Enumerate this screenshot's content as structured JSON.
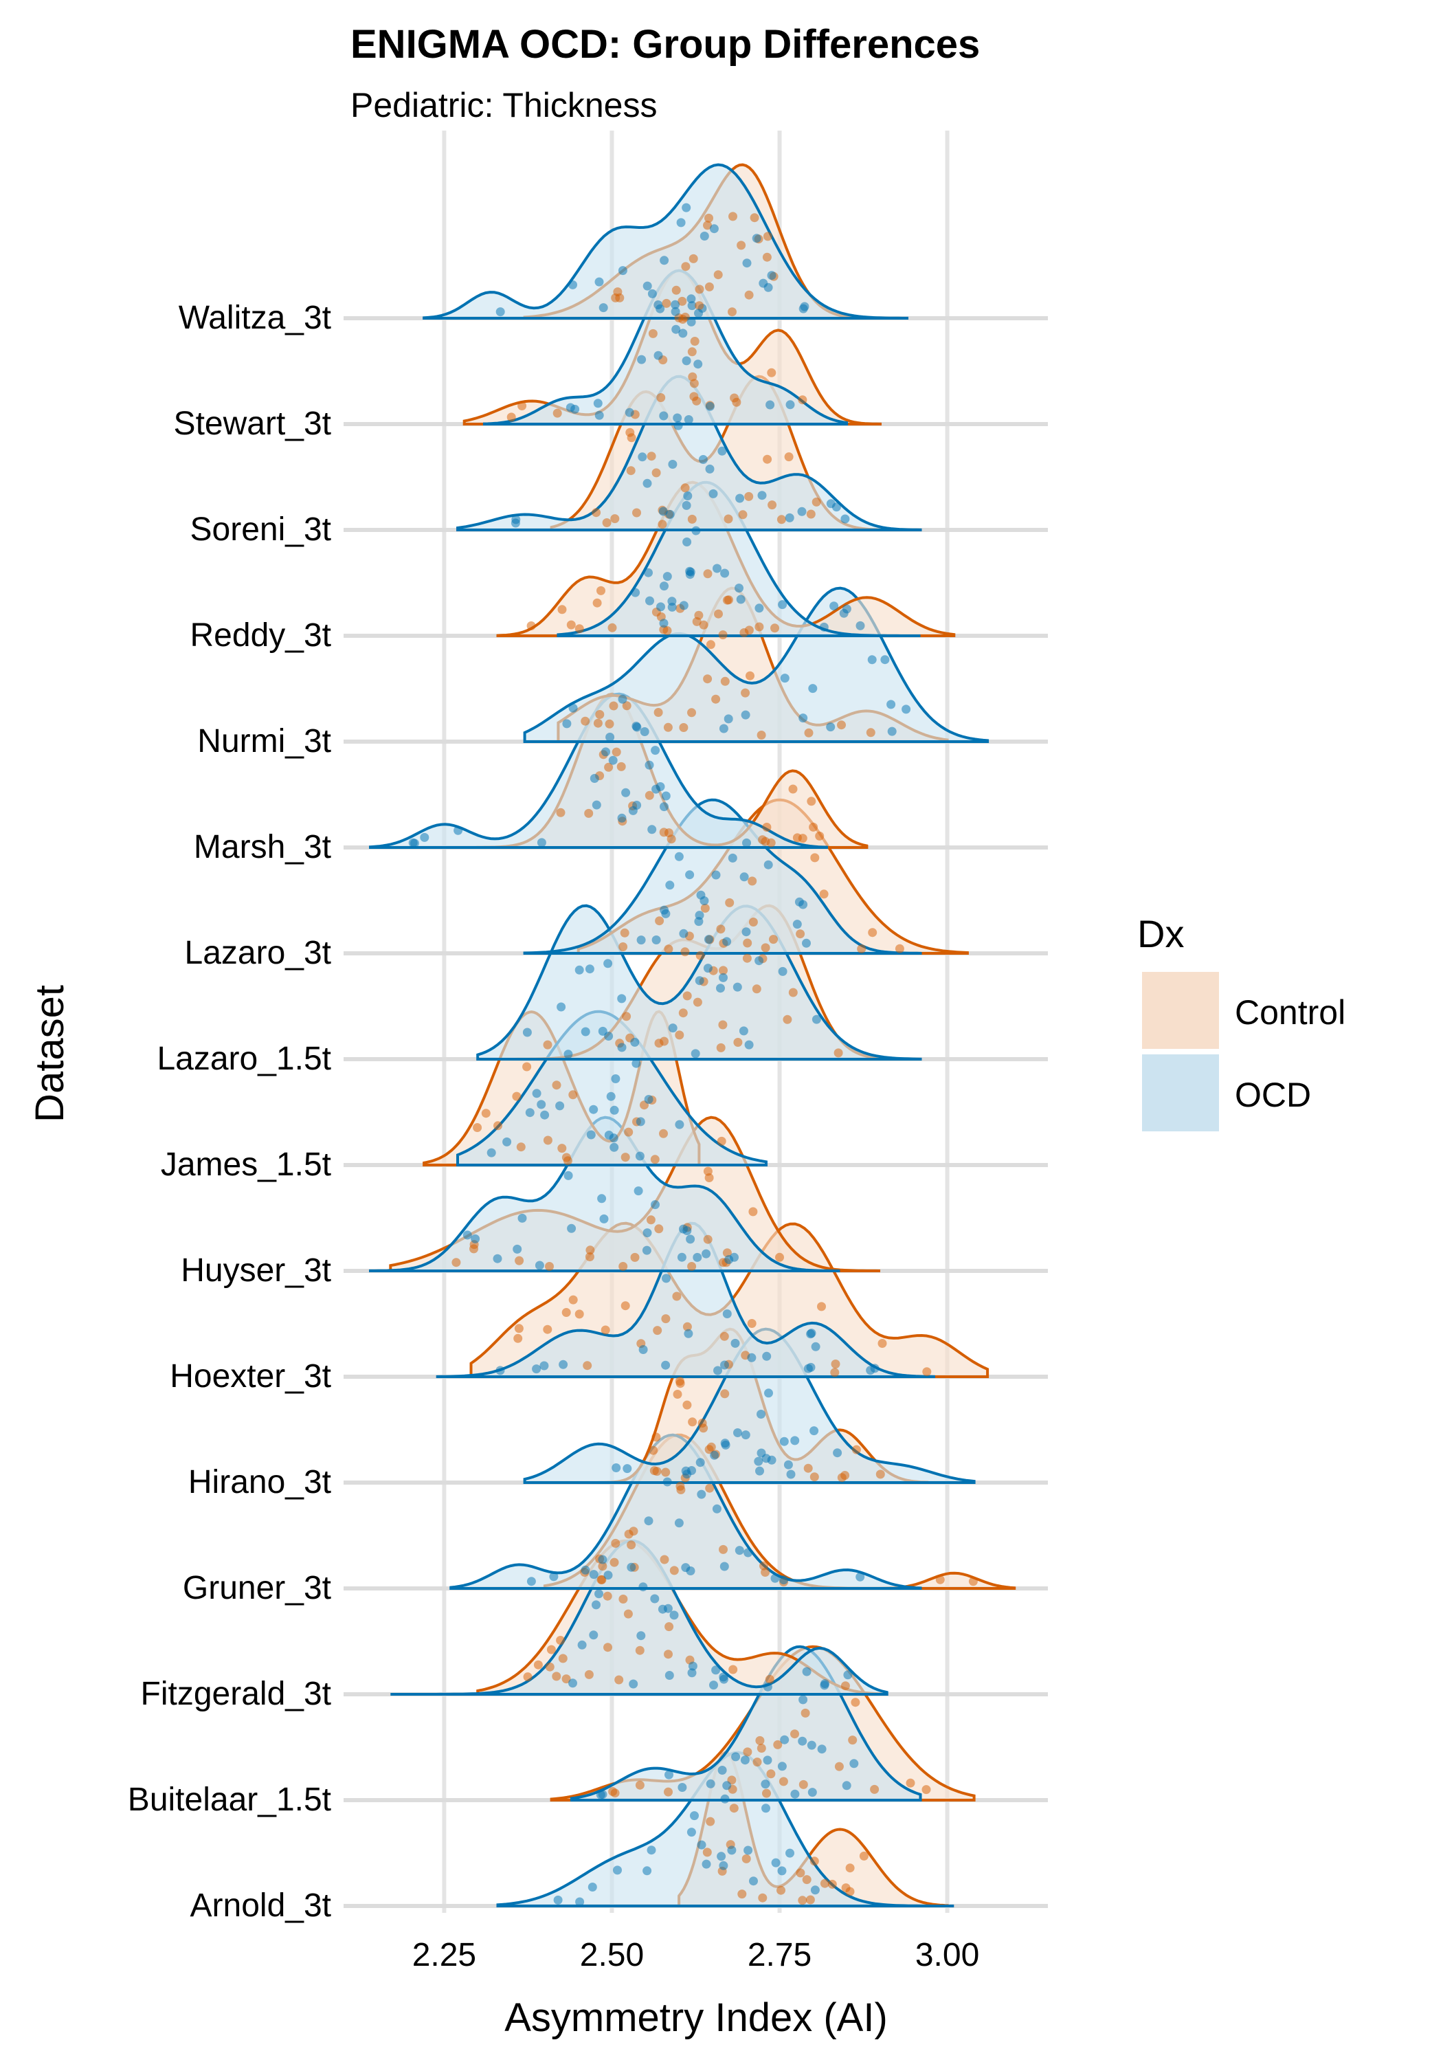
{
  "chart_data": {
    "type": "ridgeline",
    "title": "ENIGMA OCD: Group Differences",
    "subtitle": "Pediatric: Thickness",
    "xlabel": "Asymmetry Index (AI)",
    "ylabel": "Dataset",
    "xlim": [
      2.1,
      3.15
    ],
    "x_ticks": [
      {
        "value": 2.25,
        "label": "2.25"
      },
      {
        "value": 2.5,
        "label": "2.50"
      },
      {
        "value": 2.75,
        "label": "2.75"
      },
      {
        "value": 3.0,
        "label": "3.00"
      }
    ],
    "grid": true,
    "legend_position": "right",
    "legend": {
      "title": "Dx",
      "items": [
        {
          "label": "Control",
          "fill": "#f7dfcc",
          "line": "#d55e00"
        },
        {
          "label": "OCD",
          "fill": "#cce3f0",
          "line": "#0072b2"
        }
      ]
    },
    "categories": [
      "Arnold_3t",
      "Buitelaar_1.5t",
      "Fitzgerald_3t",
      "Gruner_3t",
      "Hirano_3t",
      "Hoexter_3t",
      "Huyser_3t",
      "James_1.5t",
      "Lazaro_1.5t",
      "Lazaro_3t",
      "Marsh_3t",
      "Nurmi_3t",
      "Reddy_3t",
      "Soreni_3t",
      "Stewart_3t",
      "Walitza_3t"
    ],
    "series": [
      {
        "name": "Control",
        "color": "#d55e00",
        "densities": [
          {
            "dataset": "Arnold_3t",
            "range": [
              2.6,
              3.0
            ],
            "components": [
              [
                2.67,
                0.03,
                1.0
              ],
              [
                2.84,
                0.05,
                0.5
              ]
            ]
          },
          {
            "dataset": "Buitelaar_1.5t",
            "range": [
              2.41,
              3.04
            ],
            "components": [
              [
                2.8,
                0.09,
                1.0
              ],
              [
                2.53,
                0.05,
                0.12
              ]
            ]
          },
          {
            "dataset": "Fitzgerald_3t",
            "range": [
              2.3,
              2.9
            ],
            "components": [
              [
                2.52,
                0.08,
                1.0
              ],
              [
                2.75,
                0.05,
                0.25
              ]
            ]
          },
          {
            "dataset": "Gruner_3t",
            "range": [
              2.4,
              3.1
            ],
            "components": [
              [
                2.6,
                0.07,
                1.0
              ],
              [
                3.01,
                0.035,
                0.1
              ]
            ]
          },
          {
            "dataset": "Hirano_3t",
            "range": [
              2.44,
              2.97
            ],
            "components": [
              [
                2.6,
                0.03,
                0.65
              ],
              [
                2.68,
                0.04,
                1.0
              ],
              [
                2.84,
                0.04,
                0.35
              ]
            ]
          },
          {
            "dataset": "Hoexter_3t",
            "range": [
              2.29,
              3.06
            ],
            "components": [
              [
                2.52,
                0.07,
                1.0
              ],
              [
                2.77,
                0.07,
                1.0
              ],
              [
                2.37,
                0.05,
                0.3
              ],
              [
                2.97,
                0.05,
                0.25
              ]
            ]
          },
          {
            "dataset": "Huyser_3t",
            "range": [
              2.17,
              2.9
            ],
            "components": [
              [
                2.65,
                0.06,
                1.0
              ],
              [
                2.39,
                0.1,
                0.4
              ]
            ]
          },
          {
            "dataset": "James_1.5t",
            "range": [
              2.22,
              2.63
            ],
            "components": [
              [
                2.38,
                0.055,
                1.0
              ],
              [
                2.57,
                0.03,
                1.0
              ]
            ]
          },
          {
            "dataset": "Lazaro_1.5t",
            "range": [
              2.35,
              2.9
            ],
            "components": [
              [
                2.6,
                0.06,
                0.8
              ],
              [
                2.74,
                0.05,
                1.0
              ]
            ]
          },
          {
            "dataset": "Lazaro_3t",
            "range": [
              2.45,
              3.03
            ],
            "components": [
              [
                2.75,
                0.085,
                1.0
              ],
              [
                2.55,
                0.05,
                0.2
              ]
            ]
          },
          {
            "dataset": "Marsh_3t",
            "range": [
              2.3,
              2.88
            ],
            "components": [
              [
                2.5,
                0.05,
                1.0
              ],
              [
                2.77,
                0.04,
                0.5
              ]
            ]
          },
          {
            "dataset": "Nurmi_3t",
            "range": [
              2.42,
              3.0
            ],
            "components": [
              [
                2.68,
                0.05,
                1.0
              ],
              [
                2.5,
                0.06,
                0.3
              ],
              [
                2.88,
                0.05,
                0.2
              ]
            ]
          },
          {
            "dataset": "Reddy_3t",
            "range": [
              2.33,
              3.01
            ],
            "components": [
              [
                2.62,
                0.06,
                1.0
              ],
              [
                2.46,
                0.04,
                0.35
              ],
              [
                2.88,
                0.05,
                0.25
              ]
            ]
          },
          {
            "dataset": "Soreni_3t",
            "range": [
              2.41,
              2.91
            ],
            "components": [
              [
                2.55,
                0.05,
                0.9
              ],
              [
                2.72,
                0.05,
                1.0
              ]
            ]
          },
          {
            "dataset": "Stewart_3t",
            "range": [
              2.28,
              2.9
            ],
            "components": [
              [
                2.6,
                0.05,
                1.0
              ],
              [
                2.75,
                0.04,
                0.6
              ],
              [
                2.38,
                0.05,
                0.15
              ]
            ]
          },
          {
            "dataset": "Walitza_3t",
            "range": [
              2.37,
              2.92
            ],
            "components": [
              [
                2.7,
                0.05,
                1.0
              ],
              [
                2.57,
                0.07,
                0.45
              ]
            ]
          }
        ]
      },
      {
        "name": "OCD",
        "color": "#0072b2",
        "densities": [
          {
            "dataset": "Arnold_3t",
            "range": [
              2.33,
              3.01
            ],
            "components": [
              [
                2.69,
                0.07,
                1.0
              ],
              [
                2.52,
                0.07,
                0.3
              ]
            ]
          },
          {
            "dataset": "Buitelaar_1.5t",
            "range": [
              2.44,
              2.96
            ],
            "components": [
              [
                2.78,
                0.07,
                1.0
              ],
              [
                2.56,
                0.05,
                0.2
              ]
            ]
          },
          {
            "dataset": "Fitzgerald_3t",
            "range": [
              2.17,
              2.91
            ],
            "components": [
              [
                2.53,
                0.07,
                1.0
              ],
              [
                2.81,
                0.04,
                0.3
              ]
            ]
          },
          {
            "dataset": "Gruner_3t",
            "range": [
              2.26,
              2.96
            ],
            "components": [
              [
                2.59,
                0.07,
                1.0
              ],
              [
                2.36,
                0.04,
                0.15
              ],
              [
                2.85,
                0.04,
                0.12
              ]
            ]
          },
          {
            "dataset": "Hirano_3t",
            "range": [
              2.37,
              3.04
            ],
            "components": [
              [
                2.73,
                0.07,
                1.0
              ],
              [
                2.48,
                0.05,
                0.25
              ],
              [
                2.93,
                0.05,
                0.1
              ]
            ]
          },
          {
            "dataset": "Hoexter_3t",
            "range": [
              2.24,
              2.98
            ],
            "components": [
              [
                2.62,
                0.05,
                1.0
              ],
              [
                2.45,
                0.06,
                0.3
              ],
              [
                2.8,
                0.05,
                0.35
              ]
            ]
          },
          {
            "dataset": "Huyser_3t",
            "range": [
              2.14,
              2.84
            ],
            "components": [
              [
                2.49,
                0.06,
                1.0
              ],
              [
                2.33,
                0.05,
                0.45
              ],
              [
                2.64,
                0.05,
                0.5
              ]
            ]
          },
          {
            "dataset": "James_1.5t",
            "range": [
              2.27,
              2.73
            ],
            "components": [
              [
                2.48,
                0.09,
                1.0
              ]
            ]
          },
          {
            "dataset": "Lazaro_1.5t",
            "range": [
              2.3,
              2.96
            ],
            "components": [
              [
                2.46,
                0.06,
                1.0
              ],
              [
                2.7,
                0.07,
                1.0
              ]
            ]
          },
          {
            "dataset": "Lazaro_3t",
            "range": [
              2.37,
              2.96
            ],
            "components": [
              [
                2.65,
                0.08,
                1.0
              ],
              [
                2.79,
                0.04,
                0.25
              ]
            ]
          },
          {
            "dataset": "Marsh_3t",
            "range": [
              2.14,
              2.82
            ],
            "components": [
              [
                2.51,
                0.07,
                1.0
              ],
              [
                2.25,
                0.04,
                0.15
              ],
              [
                2.7,
                0.04,
                0.15
              ]
            ]
          },
          {
            "dataset": "Nurmi_3t",
            "range": [
              2.37,
              3.06
            ],
            "components": [
              [
                2.84,
                0.07,
                1.0
              ],
              [
                2.6,
                0.07,
                0.7
              ],
              [
                2.45,
                0.05,
                0.2
              ]
            ]
          },
          {
            "dataset": "Reddy_3t",
            "range": [
              2.42,
              2.96
            ],
            "components": [
              [
                2.64,
                0.07,
                1.0
              ]
            ]
          },
          {
            "dataset": "Soreni_3t",
            "range": [
              2.27,
              2.96
            ],
            "components": [
              [
                2.6,
                0.06,
                1.0
              ],
              [
                2.37,
                0.05,
                0.1
              ],
              [
                2.78,
                0.05,
                0.35
              ]
            ]
          },
          {
            "dataset": "Stewart_3t",
            "range": [
              2.31,
              2.85
            ],
            "components": [
              [
                2.6,
                0.06,
                1.0
              ],
              [
                2.43,
                0.04,
                0.15
              ],
              [
                2.75,
                0.04,
                0.2
              ]
            ]
          },
          {
            "dataset": "Walitza_3t",
            "range": [
              2.22,
              2.94
            ],
            "components": [
              [
                2.66,
                0.07,
                1.0
              ],
              [
                2.5,
                0.05,
                0.5
              ],
              [
                2.32,
                0.035,
                0.17
              ]
            ]
          }
        ]
      }
    ],
    "ridge_scale": 1.45,
    "baseline_color": "#dcdcdc",
    "gridline_color": "#e4e4e4",
    "point_alpha": 0.5,
    "overlap_fill": "#b0b0b0"
  }
}
